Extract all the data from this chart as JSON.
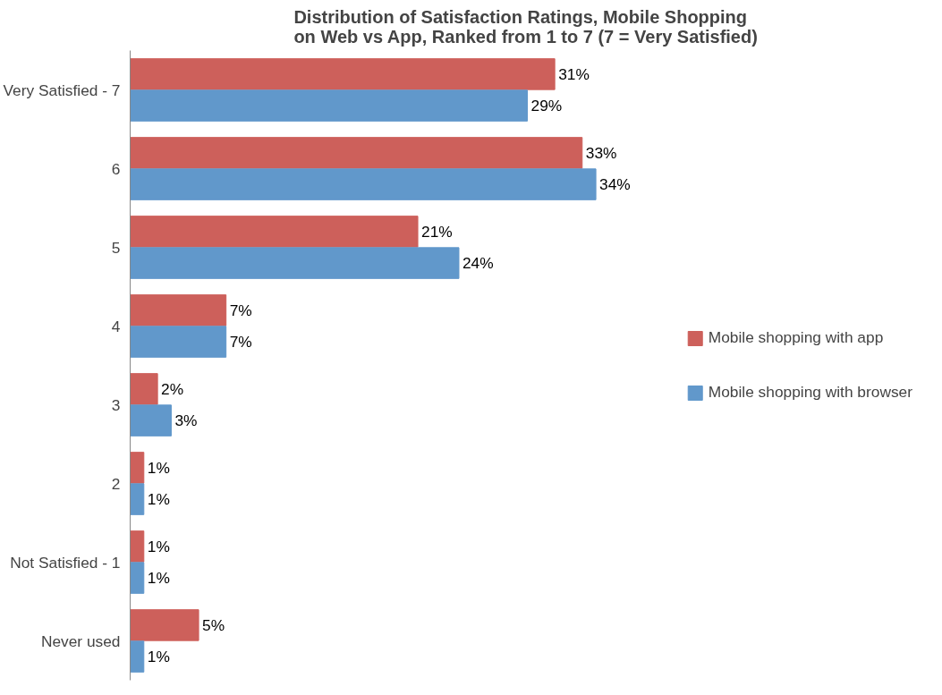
{
  "chart_data": {
    "type": "bar",
    "orientation": "horizontal",
    "title": "Distribution of Satisfaction Ratings, Mobile Shopping\non Web vs App, Ranked from 1 to 7 (7 = Very Satisfied)",
    "categories": [
      "Very Satisfied - 7",
      "6",
      "5",
      "4",
      "3",
      "2",
      "Not Satisfied - 1",
      "Never used"
    ],
    "series": [
      {
        "name": "Mobile shopping with app",
        "color": "#cd605b",
        "values": [
          31,
          33,
          21,
          7,
          2,
          1,
          1,
          5
        ],
        "value_labels": [
          "31%",
          "33%",
          "21%",
          "7%",
          "2%",
          "1%",
          "1%",
          "5%"
        ]
      },
      {
        "name": "Mobile shopping with browser",
        "color": "#6198cb",
        "values": [
          29,
          34,
          24,
          7,
          3,
          1,
          1,
          1
        ],
        "value_labels": [
          "29%",
          "34%",
          "24%",
          "7%",
          "3%",
          "1%",
          "1%",
          "1%"
        ]
      }
    ],
    "legend": "right",
    "grid": false
  }
}
